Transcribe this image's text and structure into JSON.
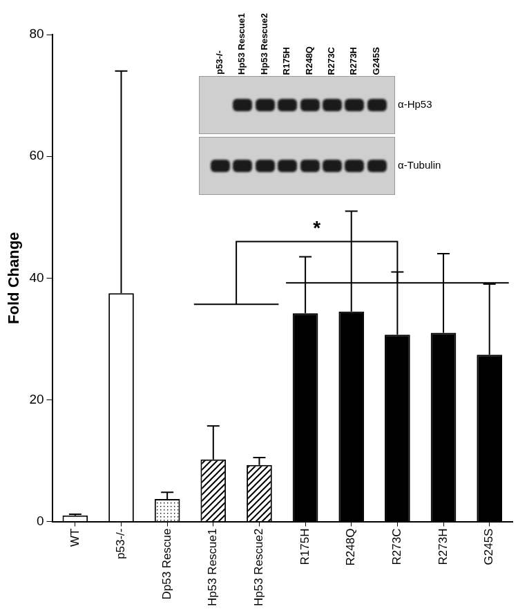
{
  "chart_data": {
    "type": "bar",
    "categories": [
      "WT",
      "p53-/-",
      "Dp53 Rescue",
      "Hp53 Rescue1",
      "Hp53 Rescue2",
      "R175H",
      "R248Q",
      "R273C",
      "R273H",
      "G245S"
    ],
    "values": [
      1,
      37.5,
      3.7,
      10.2,
      9.3,
      34.2,
      34.5,
      30.7,
      31,
      27.4
    ],
    "errors": [
      0.2,
      36.5,
      1.1,
      5.5,
      1.2,
      9.3,
      16.5,
      10.3,
      13,
      11.6
    ],
    "colors": [
      "#ffffff",
      "#ffffff",
      "#d9d9d9",
      "#bfbfbf",
      "#bfbfbf",
      "#000000",
      "#000000",
      "#000000",
      "#000000",
      "#000000"
    ],
    "ylabel": "Fold Change",
    "ylim": [
      0,
      80
    ],
    "yticks": [
      0,
      20,
      40,
      60,
      80
    ],
    "grid": false,
    "annotations": [
      {
        "text": "*",
        "from": [
          "Hp53 Rescue1",
          "Hp53 Rescue2"
        ],
        "to": [
          "R175H",
          "G245S"
        ]
      }
    ]
  },
  "inset": {
    "lanes": [
      "p53-/-",
      "Hp53 Rescue1",
      "Hp53 Rescue2",
      "R175H",
      "R248Q",
      "R273C",
      "R273H",
      "G245S"
    ],
    "rows": [
      {
        "label": "α-Hp53",
        "bands": [
          false,
          true,
          true,
          true,
          true,
          true,
          true,
          true
        ]
      },
      {
        "label": "α-Tubulin",
        "bands": [
          true,
          true,
          true,
          true,
          true,
          true,
          true,
          true
        ]
      }
    ]
  }
}
